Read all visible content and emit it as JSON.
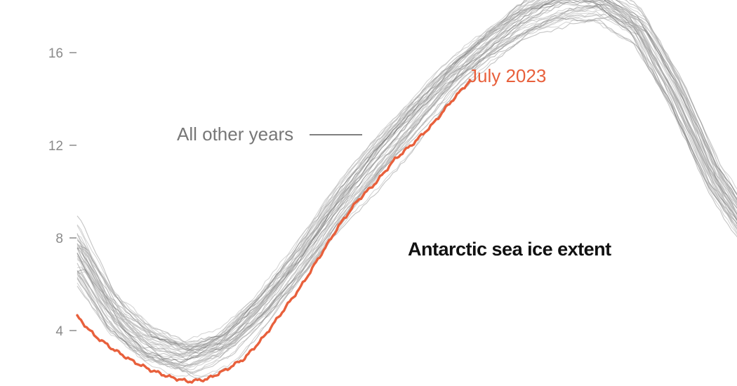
{
  "chart_data": {
    "type": "line",
    "title": "Antarctic sea ice extent",
    "xlabel": "",
    "ylabel": "",
    "yticks": [
      "4",
      "8",
      "12",
      "16"
    ],
    "ytick_values": [
      4,
      8,
      12,
      16
    ],
    "ylim": [
      2.0,
      18.2
    ],
    "xlim_days": [
      1,
      365
    ],
    "grid": false,
    "annotations": {
      "other_years": "All other years",
      "highlight": "July 2023"
    },
    "colors": {
      "other_years": "#b5b5b5",
      "other_years_dark": "#555555",
      "highlight": "#e8603c",
      "annot_other": "#777777",
      "ticks": "#8a8a8a",
      "title": "#111111"
    },
    "series": [
      {
        "name": "July 2023",
        "x_day_of_year": [
          1,
          10,
          20,
          30,
          40,
          50,
          60,
          70,
          80,
          90,
          100,
          110,
          120,
          130,
          140,
          150,
          160,
          170,
          180,
          190,
          200,
          210
        ],
        "values": [
          4.6,
          3.8,
          3.2,
          2.7,
          2.3,
          2.0,
          1.8,
          1.9,
          2.3,
          2.8,
          3.7,
          4.8,
          5.9,
          7.2,
          8.5,
          9.6,
          10.4,
          11.4,
          12.1,
          12.9,
          13.9,
          14.8
        ]
      }
    ],
    "other_years_band": {
      "x_day_of_year": [
        1,
        20,
        40,
        60,
        80,
        100,
        120,
        140,
        160,
        180,
        200,
        220,
        240,
        260,
        280,
        300,
        320,
        340,
        365
      ],
      "median": [
        7.0,
        4.6,
        3.3,
        2.8,
        3.4,
        5.0,
        7.0,
        9.3,
        11.3,
        13.1,
        14.9,
        16.3,
        17.5,
        18.2,
        18.2,
        17.1,
        14.2,
        10.6,
        7.5
      ]
    }
  }
}
